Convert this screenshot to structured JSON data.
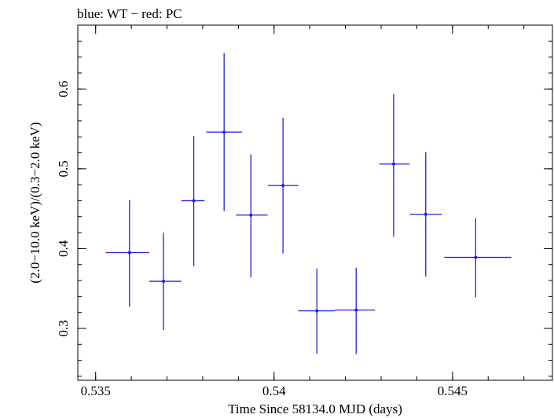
{
  "chart_data": {
    "type": "scatter",
    "title": "blue: WT − red: PC",
    "xlabel": "Time Since 58134.0 MJD (days)",
    "ylabel": "(2.0−10.0 keV)/(0.3−2.0 keV)",
    "xlim": [
      0.5345,
      0.5478
    ],
    "ylim": [
      0.235,
      0.68
    ],
    "x_ticks": [
      {
        "value": 0.535,
        "label": "0.535"
      },
      {
        "value": 0.54,
        "label": "0.54"
      },
      {
        "value": 0.545,
        "label": "0.545"
      }
    ],
    "y_ticks": [
      {
        "value": 0.3,
        "label": "0.3"
      },
      {
        "value": 0.4,
        "label": "0.4"
      },
      {
        "value": 0.5,
        "label": "0.5"
      },
      {
        "value": 0.6,
        "label": "0.6"
      }
    ],
    "grid": false,
    "series": [
      {
        "color": "#1f1fe0",
        "points": [
          {
            "x": 0.53595,
            "xlo": 0.53528,
            "xhi": 0.5365,
            "y": 0.395,
            "ylo": 0.327,
            "yhi": 0.461
          },
          {
            "x": 0.5369,
            "xlo": 0.5365,
            "xhi": 0.5374,
            "y": 0.359,
            "ylo": 0.298,
            "yhi": 0.42
          },
          {
            "x": 0.53775,
            "xlo": 0.5374,
            "xhi": 0.53805,
            "y": 0.46,
            "ylo": 0.378,
            "yhi": 0.541
          },
          {
            "x": 0.5386,
            "xlo": 0.5381,
            "xhi": 0.5391,
            "y": 0.546,
            "ylo": 0.447,
            "yhi": 0.645
          },
          {
            "x": 0.53935,
            "xlo": 0.53893,
            "xhi": 0.53982,
            "y": 0.442,
            "ylo": 0.364,
            "yhi": 0.518
          },
          {
            "x": 0.54025,
            "xlo": 0.53983,
            "xhi": 0.54068,
            "y": 0.479,
            "ylo": 0.394,
            "yhi": 0.564
          },
          {
            "x": 0.5412,
            "xlo": 0.54068,
            "xhi": 0.5417,
            "y": 0.322,
            "ylo": 0.268,
            "yhi": 0.375
          },
          {
            "x": 0.5423,
            "xlo": 0.5417,
            "xhi": 0.54283,
            "y": 0.323,
            "ylo": 0.268,
            "yhi": 0.376
          },
          {
            "x": 0.54335,
            "xlo": 0.54295,
            "xhi": 0.5438,
            "y": 0.506,
            "ylo": 0.415,
            "yhi": 0.594
          },
          {
            "x": 0.54425,
            "xlo": 0.5438,
            "xhi": 0.5447,
            "y": 0.443,
            "ylo": 0.365,
            "yhi": 0.521
          },
          {
            "x": 0.54565,
            "xlo": 0.54477,
            "xhi": 0.54665,
            "y": 0.389,
            "ylo": 0.339,
            "yhi": 0.438
          }
        ]
      }
    ]
  }
}
